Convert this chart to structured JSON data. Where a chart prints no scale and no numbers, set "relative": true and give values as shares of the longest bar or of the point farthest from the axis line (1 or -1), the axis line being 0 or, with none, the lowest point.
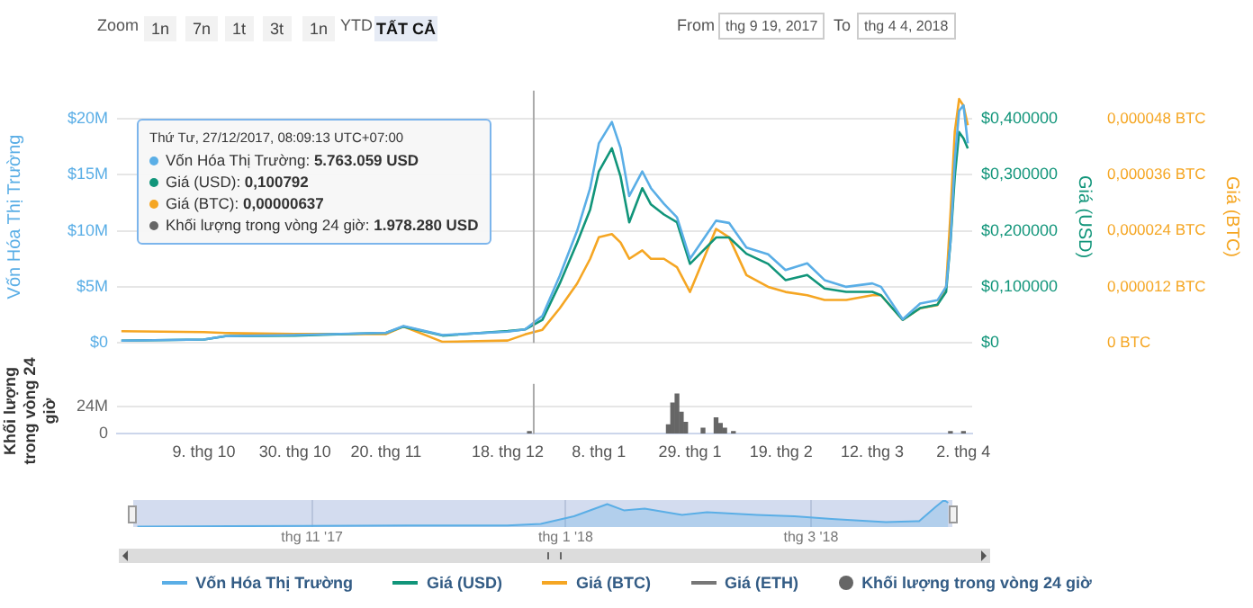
{
  "chart_data": [
    {
      "type": "line",
      "ylabel": "Vốn Hóa Thị Trường",
      "y2label": "Giá (USD)",
      "y3label": "Giá (BTC)",
      "annotations": [
        "Zoom",
        "1n",
        "7n",
        "1t",
        "3t",
        "1n",
        "YTD",
        "TẤT CẢ",
        "From",
        "thg 9 19, 2017",
        "To",
        "thg 4 4, 2018",
        "Thứ Tư, 27/12/2017, 08:09:13 UTC+07:00",
        "Vốn Hóa Thị Trường: 5.763.059 USD",
        "Giá (USD): 0,100792",
        "Giá (BTC): 0,00000637",
        "Khối lượng trong vòng 24 giờ: 1.978.280 USD"
      ],
      "x": [
        "2017-09-20",
        "2017-10-09",
        "2017-10-14",
        "2017-10-30",
        "2017-11-20",
        "2017-11-24",
        "2017-12-03",
        "2017-12-18",
        "2017-12-22",
        "2017-12-26",
        "2017-12-30",
        "2018-01-03",
        "2018-01-06",
        "2018-01-08",
        "2018-01-11",
        "2018-01-13",
        "2018-01-15",
        "2018-01-18",
        "2018-01-20",
        "2018-01-23",
        "2018-01-26",
        "2018-01-29",
        "2018-02-04",
        "2018-02-07",
        "2018-02-11",
        "2018-02-16",
        "2018-02-20",
        "2018-02-25",
        "2018-03-01",
        "2018-03-06",
        "2018-03-12",
        "2018-03-14",
        "2018-03-19",
        "2018-03-23",
        "2018-03-27",
        "2018-03-29",
        "2018-03-30",
        "2018-03-31",
        "2018-04-01",
        "2018-04-02",
        "2018-04-03"
      ],
      "series": [
        {
          "name": "Vốn Hóa Thị Trường",
          "color": "#5aaee6",
          "values": [
            200000,
            300000,
            600000,
            700000,
            900000,
            1500000,
            700000,
            1000000,
            1200000,
            2400000,
            6000000,
            10000000,
            13800000,
            17800000,
            19700000,
            17400000,
            13100000,
            15300000,
            13800000,
            12400000,
            11200000,
            7500000,
            10900000,
            10700000,
            8500000,
            7900000,
            6500000,
            7100000,
            5600000,
            5000000,
            5300000,
            5000000,
            2100000,
            3500000,
            3800000,
            5000000,
            9000000,
            16300000,
            20700000,
            21200000,
            17800000
          ]
        },
        {
          "name": "Giá (USD)",
          "color": "#11957a",
          "axis": "y2",
          "values": [
            0.004,
            0.006,
            0.012,
            0.013,
            0.018,
            0.029,
            0.013,
            0.021,
            0.024,
            0.041,
            0.106,
            0.179,
            0.238,
            0.306,
            0.347,
            0.297,
            0.215,
            0.276,
            0.247,
            0.229,
            0.215,
            0.141,
            0.188,
            0.188,
            0.159,
            0.141,
            0.112,
            0.121,
            0.097,
            0.091,
            0.091,
            0.085,
            0.041,
            0.062,
            0.068,
            0.091,
            0.179,
            0.297,
            0.376,
            0.365,
            0.347
          ]
        },
        {
          "name": "Giá (BTC)",
          "color": "#f5a623",
          "axis": "y3",
          "values": [
            2.5e-06,
            2.3e-06,
            2.1e-06,
            1.9e-06,
            1.9e-06,
            3.5e-06,
            2e-07,
            5e-07,
            1.8e-06,
            2.8e-06,
            7.4e-06,
            1.27e-05,
            1.8e-05,
            2.26e-05,
            2.33e-05,
            2.15e-05,
            1.8e-05,
            1.98e-05,
            1.8e-05,
            1.8e-05,
            1.62e-05,
            1.09e-05,
            2.44e-05,
            2.26e-05,
            1.45e-05,
            1.2e-05,
            1.09e-05,
            1.02e-05,
            9.2e-06,
            9.2e-06,
            1.02e-05,
            1.02e-05,
            4.9e-06,
            7.4e-06,
            8.1e-06,
            1.2e-05,
            2.75e-05,
            4.52e-05,
            5.22e-05,
            5.08e-05,
            4.66e-05
          ]
        },
        {
          "name": "Giá (ETH)",
          "color": "#777777",
          "values": [
            null,
            null,
            null,
            null,
            null,
            null,
            null,
            null,
            null,
            null,
            null,
            null,
            null,
            null,
            null,
            null,
            null,
            null,
            null,
            null,
            null,
            null,
            null,
            null,
            null,
            null,
            null,
            null,
            null,
            null,
            null,
            null,
            null,
            null,
            null,
            null,
            null,
            null,
            null,
            null,
            null
          ]
        }
      ],
      "xlim": [
        "2017-09-19",
        "2018-04-04"
      ],
      "ylim": [
        0,
        22500000
      ],
      "yticks": [
        {
          "value": 0,
          "label": "$0"
        },
        {
          "value": 5000000,
          "label": "$5M"
        },
        {
          "value": 10000000,
          "label": "$10M"
        },
        {
          "value": 15000000,
          "label": "$15M"
        },
        {
          "value": 20000000,
          "label": "$20M"
        }
      ],
      "y2lim": [
        0,
        0.45
      ],
      "y2ticks": [
        {
          "value": 0,
          "label": "$0"
        },
        {
          "value": 0.1,
          "label": "$0,100000"
        },
        {
          "value": 0.2,
          "label": "$0,200000"
        },
        {
          "value": 0.3,
          "label": "$0,300000"
        },
        {
          "value": 0.4,
          "label": "$0,400000"
        }
      ],
      "y3lim": [
        0,
        5.4e-05
      ],
      "y3ticks": [
        {
          "value": 0,
          "label": "0 BTC"
        },
        {
          "value": 1.2e-05,
          "label": "0,000012 BTC"
        },
        {
          "value": 2.4e-05,
          "label": "0,000024 BTC"
        },
        {
          "value": 3.6e-05,
          "label": "0,000036 BTC"
        },
        {
          "value": 4.8e-05,
          "label": "0,000048 BTC"
        }
      ],
      "grid": "y",
      "legend": "bottom",
      "tick_labels": "y",
      "ref_lines": [
        {
          "axis": "x",
          "value": "2017-12-24",
          "color": "#aaaaaa"
        }
      ]
    },
    {
      "type": "bar",
      "ylabel": "Khối lượng trong vòng 24 giờ",
      "x": [
        "2017-12-23",
        "2018-01-24",
        "2018-01-25",
        "2018-01-26",
        "2018-01-27",
        "2018-01-28",
        "2018-02-01",
        "2018-02-04",
        "2018-02-05",
        "2018-02-06",
        "2018-02-08",
        "2018-03-30",
        "2018-04-02"
      ],
      "series": [
        {
          "name": "Khối lượng trong vòng 24 giờ",
          "color": "#666666",
          "values": [
            2000000,
            8000000,
            27000000,
            35000000,
            19000000,
            10000000,
            5000000,
            14000000,
            9000000,
            5000000,
            2000000,
            2000000,
            2000000
          ]
        }
      ],
      "xlim": [
        "2017-09-19",
        "2018-04-04"
      ],
      "xticks": [
        {
          "value": "2017-10-09",
          "label": "9. thg 10"
        },
        {
          "value": "2017-10-30",
          "label": "30. thg 10"
        },
        {
          "value": "2017-11-20",
          "label": "20. thg 11"
        },
        {
          "value": "2017-12-18",
          "label": "18. thg 12"
        },
        {
          "value": "2018-01-08",
          "label": "8. thg 1"
        },
        {
          "value": "2018-01-29",
          "label": "29. thg 1"
        },
        {
          "value": "2018-02-19",
          "label": "19. thg 2"
        },
        {
          "value": "2018-03-12",
          "label": "12. thg 3"
        },
        {
          "value": "2018-04-02",
          "label": "2. thg 4"
        }
      ],
      "ylim": [
        0,
        44000000
      ],
      "yticks": [
        0,
        {
          "value": 24000000,
          "label": "24M"
        }
      ],
      "grid": "y",
      "legend": "bottom",
      "ref_lines": [
        {
          "axis": "x",
          "value": "2017-12-24",
          "color": "#aaaaaa"
        }
      ]
    },
    {
      "type": "area",
      "relative": true,
      "x": [
        "2017-09-20",
        "2017-10-30",
        "2017-11-24",
        "2017-12-18",
        "2017-12-26",
        "2018-01-03",
        "2018-01-11",
        "2018-01-15",
        "2018-01-20",
        "2018-01-29",
        "2018-02-04",
        "2018-02-16",
        "2018-02-25",
        "2018-03-06",
        "2018-03-19",
        "2018-03-27",
        "2018-03-31",
        "2018-04-02",
        "2018-04-03"
      ],
      "series": [
        {
          "color": "#5aaee6",
          "values": [
            0.02,
            0.04,
            0.06,
            0.06,
            0.12,
            0.4,
            0.85,
            0.62,
            0.68,
            0.45,
            0.55,
            0.45,
            0.4,
            0.3,
            0.18,
            0.22,
            0.75,
            1,
            0.9
          ]
        }
      ],
      "xlim": [
        "2017-09-19",
        "2018-04-04"
      ],
      "xticks": [
        {
          "value": "2017-11-01",
          "label": "thg 11 '17"
        },
        {
          "value": "2018-01-01",
          "label": "thg 1 '18"
        },
        {
          "value": "2018-03-01",
          "label": "thg 3 '18"
        }
      ],
      "grid": "x",
      "tick_labels": "x"
    }
  ]
}
